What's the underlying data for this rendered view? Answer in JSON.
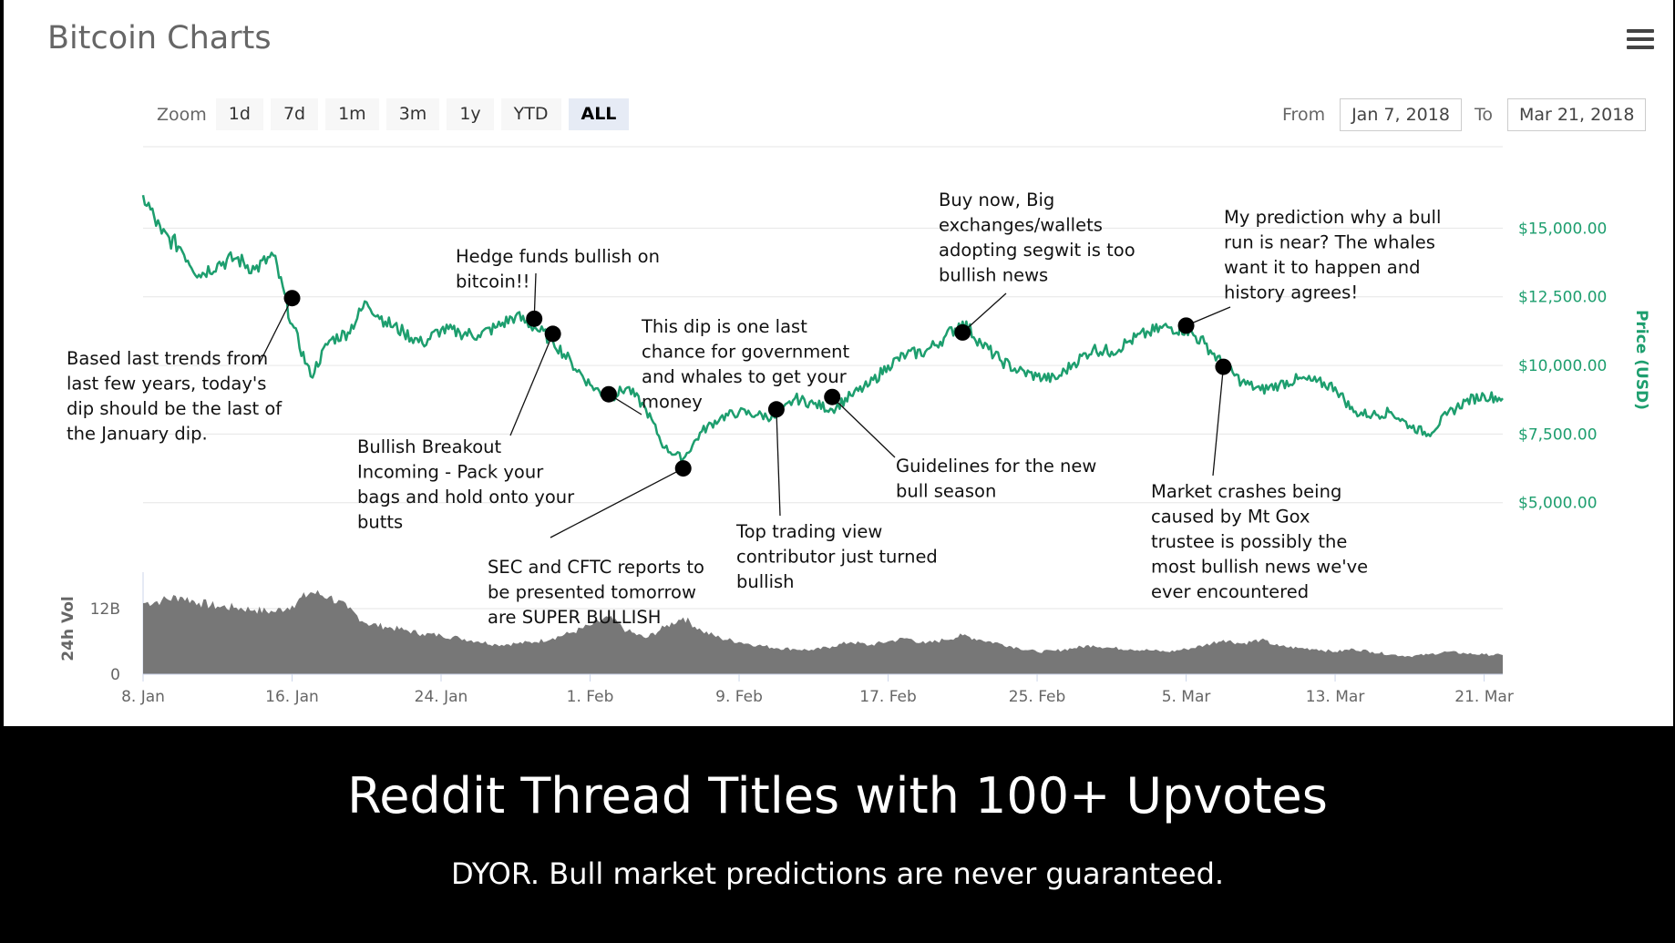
{
  "title": "Bitcoin Charts",
  "zoom": {
    "label": "Zoom",
    "options": [
      "1d",
      "7d",
      "1m",
      "3m",
      "1y",
      "YTD",
      "ALL"
    ],
    "active": "ALL"
  },
  "range": {
    "from_label": "From",
    "from_value": "Jan 7, 2018",
    "to_label": "To",
    "to_value": "Mar 21, 2018"
  },
  "caption": "Reddit Thread Titles with 100+ Upvotes",
  "subcaption": "DYOR. Bull market predictions are never guaranteed.",
  "colors": {
    "line": "#1d9e6e",
    "volume": "#777777",
    "marker": "#000000"
  },
  "chart_data": {
    "type": "line",
    "title": "Bitcoin Charts",
    "ylabel": "Price (USD)",
    "y_tick_labels": [
      "$5,000.00",
      "$7,500.00",
      "$10,000.00",
      "$12,500.00",
      "$15,000.00"
    ],
    "y_ticks": [
      5000,
      7500,
      10000,
      12500,
      15000
    ],
    "ylim": [
      3000,
      18000
    ],
    "x_tick_labels": [
      "8. Jan",
      "16. Jan",
      "24. Jan",
      "1. Feb",
      "9. Feb",
      "17. Feb",
      "25. Feb",
      "5. Mar",
      "13. Mar",
      "21. Mar"
    ],
    "x_ticks": [
      "2018-01-08",
      "2018-01-16",
      "2018-01-24",
      "2018-02-01",
      "2018-02-09",
      "2018-02-17",
      "2018-02-25",
      "2018-03-05",
      "2018-03-13",
      "2018-03-21"
    ],
    "xlim": [
      "2018-01-08",
      "2018-03-22"
    ],
    "series": [
      {
        "values": [
          [
            "2018-01-08",
            16200
          ],
          [
            "2018-01-09",
            14800
          ],
          [
            "2018-01-10",
            14300
          ],
          [
            "2018-01-11",
            13300
          ],
          [
            "2018-01-12",
            13700
          ],
          [
            "2018-01-13",
            13900
          ],
          [
            "2018-01-14",
            13500
          ],
          [
            "2018-01-15",
            14000
          ],
          [
            "2018-01-16",
            11500
          ],
          [
            "2018-01-17",
            9600
          ],
          [
            "2018-01-18",
            10900
          ],
          [
            "2018-01-19",
            11200
          ],
          [
            "2018-01-20",
            12300
          ],
          [
            "2018-01-21",
            11600
          ],
          [
            "2018-01-22",
            11200
          ],
          [
            "2018-01-23",
            10800
          ],
          [
            "2018-01-24",
            11300
          ],
          [
            "2018-01-25",
            11200
          ],
          [
            "2018-01-26",
            11100
          ],
          [
            "2018-01-27",
            11400
          ],
          [
            "2018-01-28",
            11800
          ],
          [
            "2018-01-29",
            11400
          ],
          [
            "2018-01-30",
            10900
          ],
          [
            "2018-01-31",
            10100
          ],
          [
            "2018-02-01",
            9300
          ],
          [
            "2018-02-02",
            8800
          ],
          [
            "2018-02-03",
            9200
          ],
          [
            "2018-02-04",
            8400
          ],
          [
            "2018-02-05",
            7000
          ],
          [
            "2018-02-06",
            6600
          ],
          [
            "2018-02-07",
            7600
          ],
          [
            "2018-02-08",
            8100
          ],
          [
            "2018-02-09",
            8300
          ],
          [
            "2018-02-10",
            8200
          ],
          [
            "2018-02-11",
            8100
          ],
          [
            "2018-02-12",
            8800
          ],
          [
            "2018-02-13",
            8600
          ],
          [
            "2018-02-14",
            8400
          ],
          [
            "2018-02-15",
            8900
          ],
          [
            "2018-02-16",
            9300
          ],
          [
            "2018-02-17",
            10000
          ],
          [
            "2018-02-18",
            10400
          ],
          [
            "2018-02-19",
            10500
          ],
          [
            "2018-02-20",
            11000
          ],
          [
            "2018-02-21",
            11600
          ],
          [
            "2018-02-22",
            10800
          ],
          [
            "2018-02-23",
            10200
          ],
          [
            "2018-02-24",
            9800
          ],
          [
            "2018-02-25",
            9600
          ],
          [
            "2018-02-26",
            9500
          ],
          [
            "2018-02-27",
            10100
          ],
          [
            "2018-02-28",
            10600
          ],
          [
            "2018-03-01",
            10500
          ],
          [
            "2018-03-02",
            10900
          ],
          [
            "2018-03-03",
            11200
          ],
          [
            "2018-03-04",
            11400
          ],
          [
            "2018-03-05",
            11300
          ],
          [
            "2018-03-06",
            10800
          ],
          [
            "2018-03-07",
            10000
          ],
          [
            "2018-03-08",
            9400
          ],
          [
            "2018-03-09",
            9100
          ],
          [
            "2018-03-10",
            9300
          ],
          [
            "2018-03-11",
            9500
          ],
          [
            "2018-03-12",
            9400
          ],
          [
            "2018-03-13",
            9200
          ],
          [
            "2018-03-14",
            8300
          ],
          [
            "2018-03-15",
            8200
          ],
          [
            "2018-03-16",
            8300
          ],
          [
            "2018-03-17",
            7800
          ],
          [
            "2018-03-18",
            7500
          ],
          [
            "2018-03-19",
            8200
          ],
          [
            "2018-03-20",
            8700
          ],
          [
            "2018-03-21",
            8900
          ],
          [
            "2018-03-22",
            8800
          ]
        ]
      }
    ],
    "volume": {
      "label": "24h Vol",
      "tick_labels": [
        "12B",
        "0"
      ],
      "ticks": [
        12,
        0
      ],
      "ylim": [
        0,
        18
      ],
      "values": [
        [
          "2018-01-08",
          13.0
        ],
        [
          "2018-01-09",
          13.5
        ],
        [
          "2018-01-10",
          14.2
        ],
        [
          "2018-01-11",
          13.1
        ],
        [
          "2018-01-12",
          12.4
        ],
        [
          "2018-01-13",
          12.2
        ],
        [
          "2018-01-14",
          11.8
        ],
        [
          "2018-01-15",
          11.4
        ],
        [
          "2018-01-16",
          12.6
        ],
        [
          "2018-01-17",
          15.0
        ],
        [
          "2018-01-18",
          14.2
        ],
        [
          "2018-01-19",
          12.0
        ],
        [
          "2018-01-20",
          9.3
        ],
        [
          "2018-01-21",
          8.7
        ],
        [
          "2018-01-22",
          8.1
        ],
        [
          "2018-01-23",
          7.4
        ],
        [
          "2018-01-24",
          7.1
        ],
        [
          "2018-01-25",
          6.6
        ],
        [
          "2018-01-26",
          6.0
        ],
        [
          "2018-01-27",
          5.4
        ],
        [
          "2018-01-28",
          5.6
        ],
        [
          "2018-01-29",
          5.9
        ],
        [
          "2018-01-30",
          6.6
        ],
        [
          "2018-01-31",
          7.6
        ],
        [
          "2018-02-01",
          8.9
        ],
        [
          "2018-02-02",
          10.4
        ],
        [
          "2018-02-03",
          7.9
        ],
        [
          "2018-02-04",
          6.6
        ],
        [
          "2018-02-05",
          8.6
        ],
        [
          "2018-02-06",
          10.4
        ],
        [
          "2018-02-07",
          7.9
        ],
        [
          "2018-02-08",
          6.6
        ],
        [
          "2018-02-09",
          5.9
        ],
        [
          "2018-02-10",
          5.3
        ],
        [
          "2018-02-11",
          4.8
        ],
        [
          "2018-02-12",
          4.6
        ],
        [
          "2018-02-13",
          4.4
        ],
        [
          "2018-02-14",
          5.1
        ],
        [
          "2018-02-15",
          5.9
        ],
        [
          "2018-02-16",
          5.3
        ],
        [
          "2018-02-17",
          6.0
        ],
        [
          "2018-02-18",
          6.6
        ],
        [
          "2018-02-19",
          5.6
        ],
        [
          "2018-02-20",
          6.3
        ],
        [
          "2018-02-21",
          7.1
        ],
        [
          "2018-02-22",
          6.3
        ],
        [
          "2018-02-23",
          5.6
        ],
        [
          "2018-02-24",
          4.8
        ],
        [
          "2018-02-25",
          4.1
        ],
        [
          "2018-02-26",
          4.3
        ],
        [
          "2018-02-27",
          4.8
        ],
        [
          "2018-02-28",
          5.3
        ],
        [
          "2018-03-01",
          4.8
        ],
        [
          "2018-03-02",
          4.6
        ],
        [
          "2018-03-03",
          4.4
        ],
        [
          "2018-03-04",
          4.1
        ],
        [
          "2018-03-05",
          4.6
        ],
        [
          "2018-03-06",
          5.3
        ],
        [
          "2018-03-07",
          6.3
        ],
        [
          "2018-03-08",
          5.6
        ],
        [
          "2018-03-09",
          6.3
        ],
        [
          "2018-03-10",
          5.1
        ],
        [
          "2018-03-11",
          4.8
        ],
        [
          "2018-03-12",
          4.6
        ],
        [
          "2018-03-13",
          4.1
        ],
        [
          "2018-03-14",
          4.6
        ],
        [
          "2018-03-15",
          4.1
        ],
        [
          "2018-03-16",
          3.6
        ],
        [
          "2018-03-17",
          3.3
        ],
        [
          "2018-03-18",
          3.6
        ],
        [
          "2018-03-19",
          4.1
        ],
        [
          "2018-03-20",
          3.8
        ],
        [
          "2018-03-21",
          3.6
        ],
        [
          "2018-03-22",
          3.5
        ]
      ]
    },
    "annotations": [
      {
        "date": "2018-01-16",
        "value": 12450,
        "lines": [
          "Based last trends from",
          "last few years, today's",
          "dip should be the last of",
          "the January dip."
        ]
      },
      {
        "date": "2018-01-29",
        "value": 11700,
        "lines": [
          "Hedge funds bullish on",
          "bitcoin!!"
        ]
      },
      {
        "date": "2018-01-30",
        "value": 11150,
        "lines": [
          "Bullish Breakout",
          "Incoming - Pack your",
          "bags and hold onto your",
          "butts"
        ]
      },
      {
        "date": "2018-02-02",
        "value": 8950,
        "lines": [
          "This dip is one last",
          "chance for government",
          "and whales to get your",
          "money"
        ]
      },
      {
        "date": "2018-02-06",
        "value": 6250,
        "lines": [
          "SEC and CFTC reports to",
          "be presented tomorrow",
          "are SUPER BULLISH"
        ]
      },
      {
        "date": "2018-02-11",
        "value": 8400,
        "lines": [
          "Top trading view",
          "contributor just turned",
          "bullish"
        ]
      },
      {
        "date": "2018-02-14",
        "value": 8850,
        "lines": [
          "Guidelines for the new",
          "bull season"
        ]
      },
      {
        "date": "2018-02-21",
        "value": 11200,
        "lines": [
          "Buy now, Big",
          "exchanges/wallets",
          "adopting segwit is too",
          "bullish news"
        ]
      },
      {
        "date": "2018-03-05",
        "value": 11450,
        "lines": [
          "My prediction why a bull",
          "run is near? The whales",
          "want it to happen and",
          "history agrees!"
        ]
      },
      {
        "date": "2018-03-07",
        "value": 9950,
        "lines": [
          "Market crashes being",
          "caused by Mt Gox",
          "trustee is possibly the",
          "most bullish news we've",
          "ever encountered"
        ]
      }
    ]
  }
}
